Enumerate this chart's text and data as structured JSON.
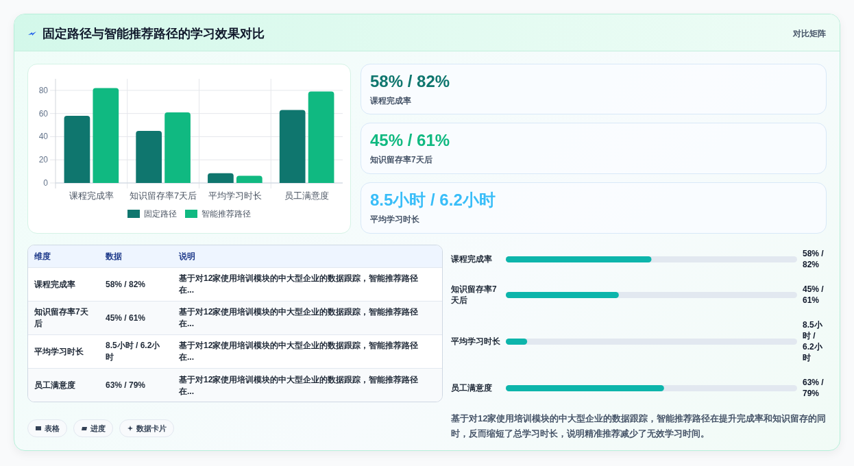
{
  "chart_data": [
    {
      "type": "other",
      "title": "固定路径与智能推荐路径的学习效果对比",
      "annotations": [
        "对比矩阵"
      ]
    },
    {
      "type": "bar",
      "categories": [
        "课程完成率",
        "知识留存率7天后",
        "平均学习时长",
        "员工满意度"
      ],
      "series": [
        {
          "name": "固定路径",
          "color": "#0f766e",
          "values": [
            58,
            45,
            8.5,
            63
          ]
        },
        {
          "name": "智能推荐路径",
          "color": "#10b981",
          "values": [
            82,
            61,
            6.2,
            79
          ]
        }
      ],
      "ylim": [
        0,
        90
      ],
      "yticks": [
        0,
        20,
        40,
        60,
        80
      ],
      "grid": true,
      "legend": "bottom"
    },
    {
      "type": "other",
      "title": "58% / 82%",
      "subtitle": "课程完成率",
      "color": "#0f766e"
    },
    {
      "type": "other",
      "title": "45% / 61%",
      "subtitle": "知识留存率7天后",
      "color": "#10b981"
    },
    {
      "type": "other",
      "title": "8.5小时 / 6.2小时",
      "subtitle": "平均学习时长",
      "color": "#38bdf8"
    },
    {
      "type": "other",
      "annotations": [
        "维度",
        "数据",
        "说明",
        "课程完成率",
        "58% / 82%",
        "基于对12家使用培训模块的中大型企业的数据跟踪，智能推荐路径在...",
        "知识留存率7天后",
        "45% / 61%",
        "基于对12家使用培训模块的中大型企业的数据跟踪，智能推荐路径在...",
        "平均学习时长",
        "8.5小时 / 6.2小时",
        "基于对12家使用培训模块的中大型企业的数据跟踪，智能推荐路径在...",
        "员工满意度",
        "63% / 79%",
        "基于对12家使用培训模块的中大型企业的数据跟踪，智能推荐路径在..."
      ]
    },
    {
      "type": "bar",
      "orientation": "horizontal",
      "categories": [
        "课程完成率",
        "知识留存率7天后",
        "平均学习时长",
        "员工满意度"
      ],
      "values": [
        58,
        45,
        8.5,
        63
      ],
      "xlim": [
        0,
        116
      ],
      "value_labels": [
        "58% / 82%",
        "45% / 61%",
        "8.5小时 / 6.2小时",
        "63% / 79%"
      ],
      "color": "#0db5ab",
      "annotations": [
        "基于对12家使用培训模块的中大型企业的数据跟踪，智能推荐路径在提升完成率和知识留存的同时，反而缩短了总学习时长，说明精准推荐减少了无效学习时间。"
      ]
    },
    {
      "type": "other",
      "annotations": [
        "表格",
        "进度",
        "数据卡片"
      ]
    }
  ]
}
